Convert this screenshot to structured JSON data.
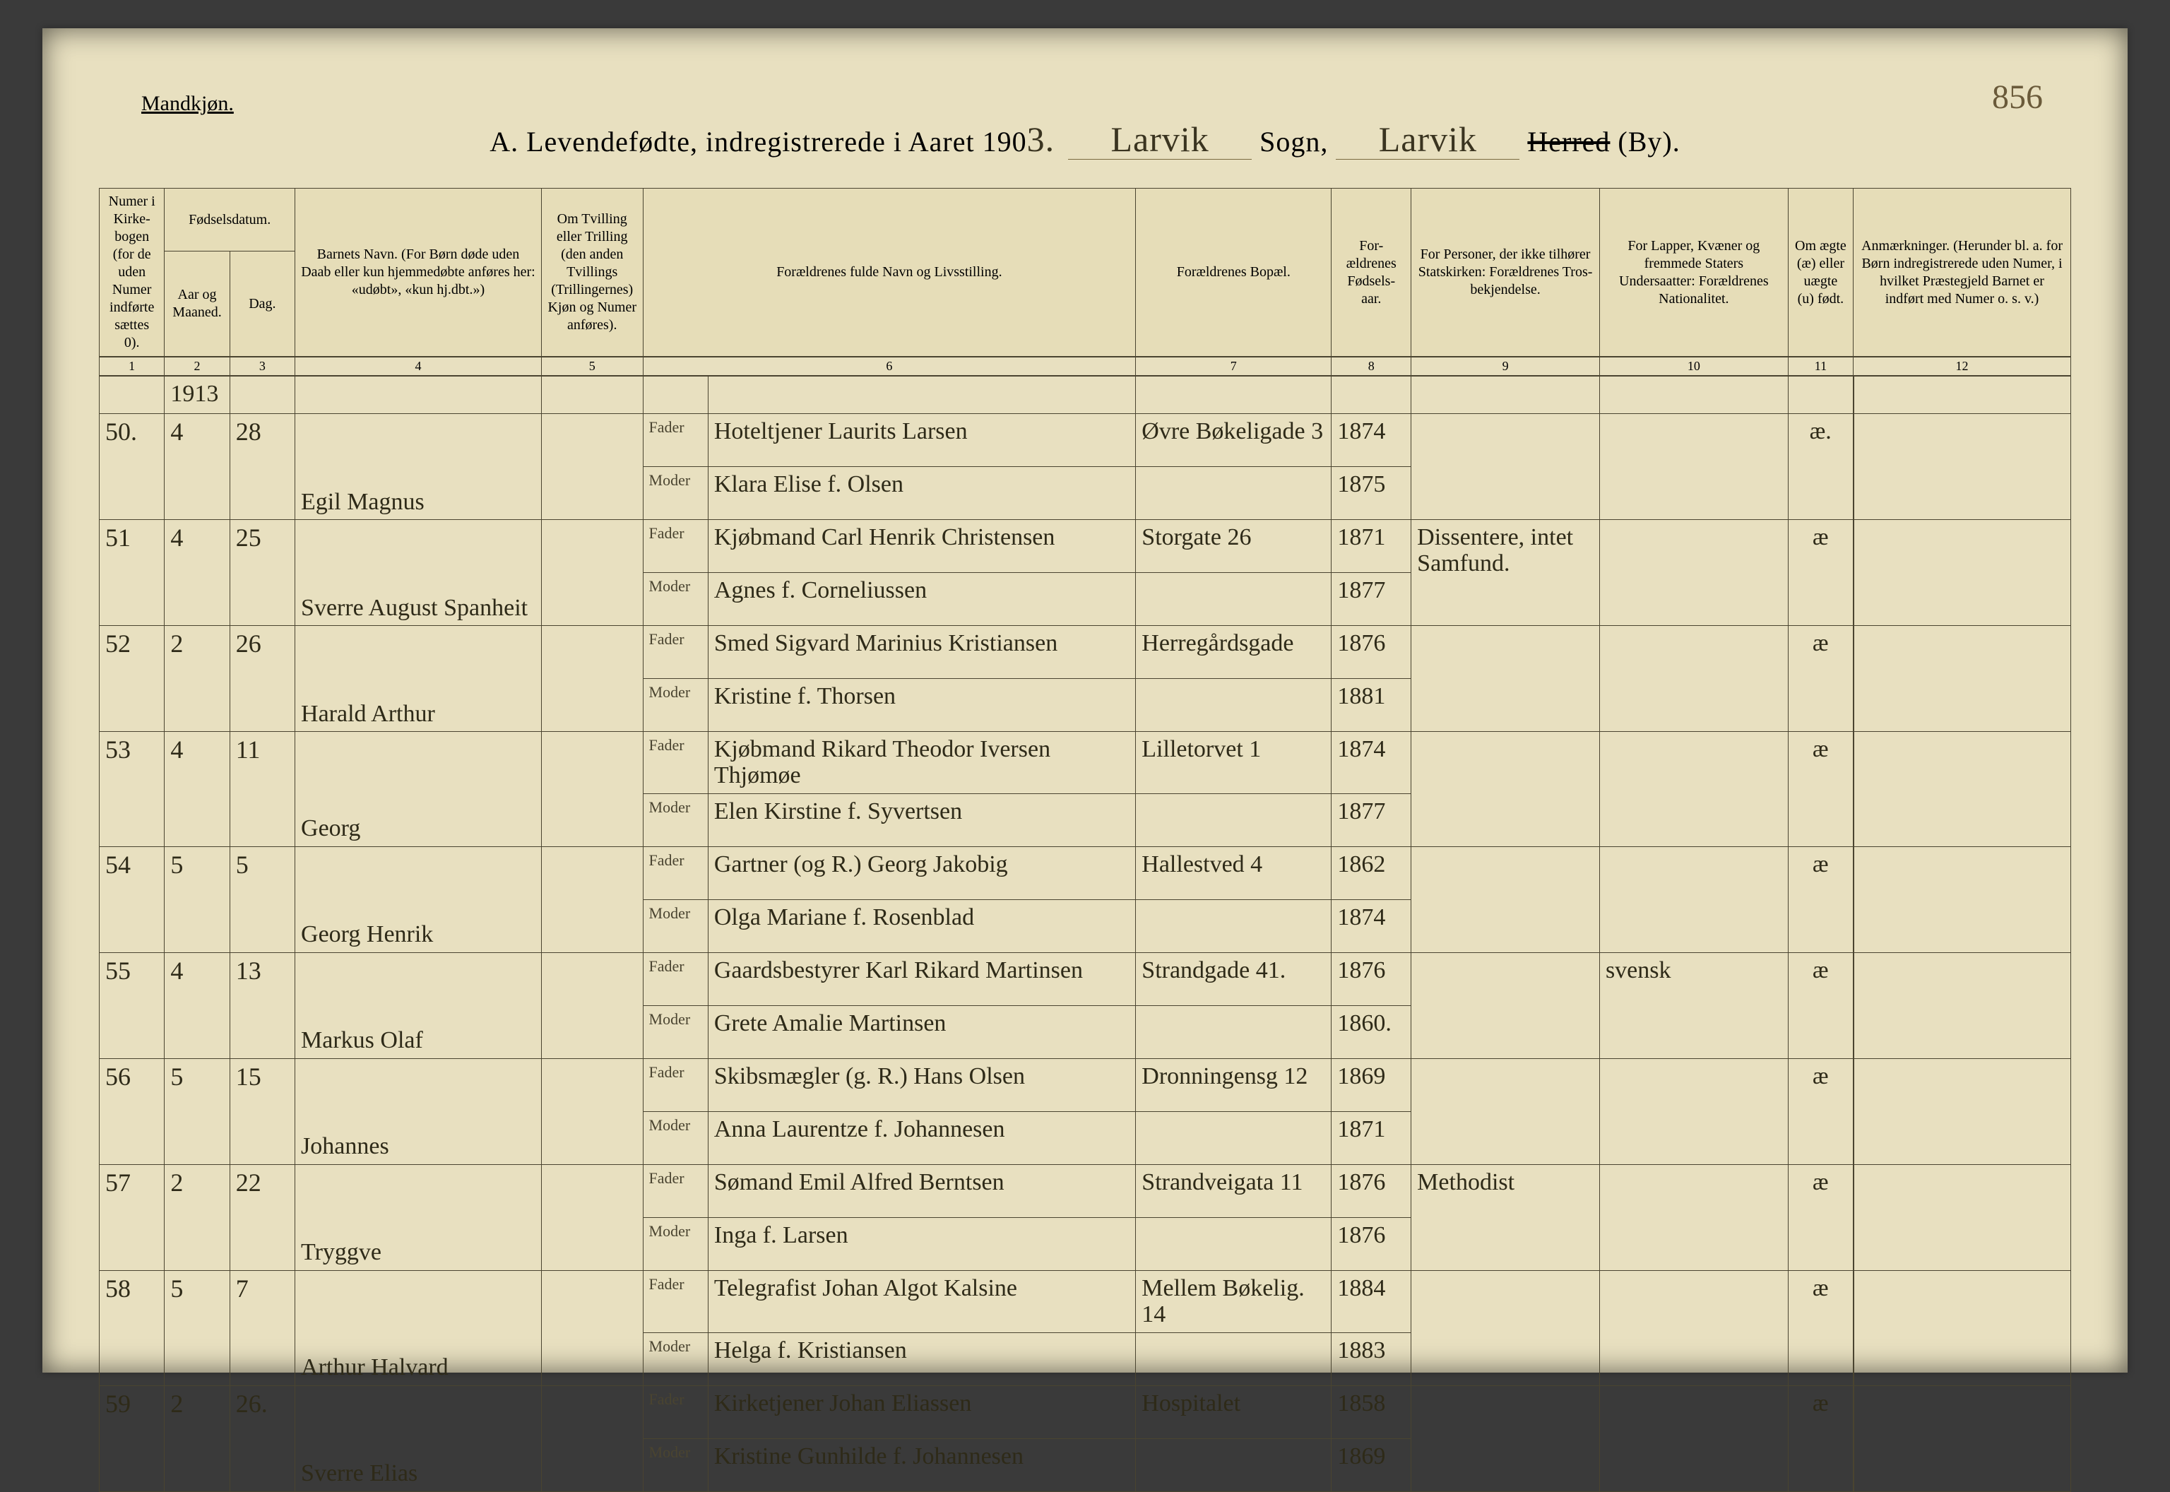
{
  "page": {
    "gender_label": "Mandkjøn.",
    "page_number_hand": "856",
    "title_prefix": "A.  Levendefødte, indregistrerede i Aaret 190",
    "year_suffix_hand": "3.",
    "sogn_hand_1": "Larvik",
    "sogn_label": "Sogn,",
    "sogn_hand_2": "Larvik",
    "herred_strike": "Herred",
    "by_label": "(By)."
  },
  "columns": {
    "c1": "Numer i Kirke-bogen (for de uden Numer indførte sættes 0).",
    "c2_group": "Fødselsdatum.",
    "c2": "Aar og Maaned.",
    "c3": "Dag.",
    "c4": "Barnets Navn.\n(For Børn døde uden Daab eller kun hjemmedøbte anføres her: «udøbt», «kun hj.dbt.»)",
    "c5": "Om Tvilling eller Trilling (den anden Tvillings (Trillingernes) Kjøn og Numer anføres).",
    "c6": "Forældrenes fulde Navn og Livsstilling.",
    "c7": "Forældrenes Bopæl.",
    "c8": "For-ældrenes Fødsels-aar.",
    "c9": "For Personer, der ikke tilhører Statskirken: Forældrenes Tros-bekjendelse.",
    "c10": "For Lapper, Kvæner og fremmede Staters Undersaatter: Forældrenes Nationalitet.",
    "c11": "Om ægte (æ) eller uægte (u) født.",
    "c12": "Anmærkninger.\n(Herunder bl. a. for Børn indregistrerede uden Numer, i hvilket Præstegjeld Barnet er indført med Numer o. s. v.)",
    "nums": [
      "1",
      "2",
      "3",
      "4",
      "5",
      "6",
      "7",
      "8",
      "9",
      "10",
      "11",
      "12"
    ]
  },
  "labels": {
    "fader": "Fader",
    "moder": "Moder"
  },
  "year_note": "1913",
  "rows": [
    {
      "num": "50.",
      "month": "4",
      "day": "28",
      "child": "Egil Magnus",
      "fader": "Hoteltjener Laurits Larsen",
      "moder": "Klara Elise f. Olsen",
      "bopel": "Øvre Bøkeligade 3",
      "fyear": "1874",
      "myear": "1875",
      "c9": "",
      "c10": "",
      "c11": "æ.",
      "c12": ""
    },
    {
      "num": "51",
      "month": "4",
      "day": "25",
      "child": "Sverre August Spanheit",
      "fader": "Kjøbmand Carl Henrik Christensen",
      "moder": "Agnes f. Corneliussen",
      "bopel": "Storgate 26",
      "fyear": "1871",
      "myear": "1877",
      "c9": "Dissentere, intet Samfund.",
      "c10": "",
      "c11": "æ",
      "c12": ""
    },
    {
      "num": "52",
      "month": "2",
      "day": "26",
      "child": "Harald Arthur",
      "fader": "Smed Sigvard Marinius Kristiansen",
      "moder": "Kristine f. Thorsen",
      "bopel": "Herregårdsgade",
      "fyear": "1876",
      "myear": "1881",
      "c9": "",
      "c10": "",
      "c11": "æ",
      "c12": ""
    },
    {
      "num": "53",
      "month": "4",
      "day": "11",
      "child": "Georg",
      "fader": "Kjøbmand Rikard Theodor Iversen Thjømøe",
      "moder": "Elen Kirstine f. Syvertsen",
      "bopel": "Lilletorvet 1",
      "fyear": "1874",
      "myear": "1877",
      "c9": "",
      "c10": "",
      "c11": "æ",
      "c12": ""
    },
    {
      "num": "54",
      "month": "5",
      "day": "5",
      "child": "Georg Henrik",
      "fader": "Gartner (og R.) Georg Jakobig",
      "moder": "Olga Mariane f. Rosenblad",
      "bopel": "Hallestved 4",
      "fyear": "1862",
      "myear": "1874",
      "c9": "",
      "c10": "",
      "c11": "æ",
      "c12": ""
    },
    {
      "num": "55",
      "month": "4",
      "day": "13",
      "child": "Markus Olaf",
      "fader": "Gaardsbestyrer Karl Rikard Martinsen",
      "moder": "Grete Amalie Martinsen",
      "bopel": "Strandgade 41.",
      "fyear": "1876",
      "myear": "1860.",
      "c9": "",
      "c10": "svensk",
      "c11": "æ",
      "c12": ""
    },
    {
      "num": "56",
      "month": "5",
      "day": "15",
      "child": "Johannes",
      "fader": "Skibsmægler (g. R.) Hans Olsen",
      "moder": "Anna Laurentze f. Johannesen",
      "bopel": "Dronningensg 12",
      "fyear": "1869",
      "myear": "1871",
      "c9": "",
      "c10": "",
      "c11": "æ",
      "c12": ""
    },
    {
      "num": "57",
      "month": "2",
      "day": "22",
      "child": "Tryggve",
      "fader": "Sømand Emil Alfred Berntsen",
      "moder": "Inga f. Larsen",
      "bopel": "Strandveigata 11",
      "fyear": "1876",
      "myear": "1876",
      "c9": "Methodist",
      "c10": "",
      "c11": "æ",
      "c12": ""
    },
    {
      "num": "58",
      "month": "5",
      "day": "7",
      "child": "Arthur Halvard",
      "fader": "Telegrafist Johan Algot Kalsine",
      "moder": "Helga f. Kristiansen",
      "bopel": "Mellem Bøkelig. 14",
      "fyear": "1884",
      "myear": "1883",
      "c9": "",
      "c10": "",
      "c11": "æ",
      "c12": ""
    },
    {
      "num": "59",
      "month": "2",
      "day": "26.",
      "child": "Sverre Elias",
      "fader": "Kirketjener Johan Eliassen",
      "moder": "Kristine Gunhilde f. Johannesen",
      "bopel": "Hospitalet",
      "fyear": "1858",
      "myear": "1869",
      "c9": "",
      "c10": "",
      "c11": "æ",
      "c12": ""
    }
  ]
}
